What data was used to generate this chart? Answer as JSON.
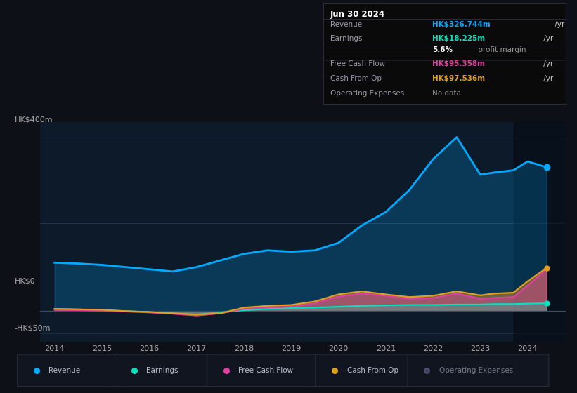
{
  "background_color": "#0d1117",
  "chart_bg_color": "#0d1a2a",
  "years": [
    2014,
    2014.5,
    2015,
    2015.5,
    2016,
    2016.5,
    2017,
    2017.5,
    2018,
    2018.5,
    2019,
    2019.5,
    2020,
    2020.5,
    2021,
    2021.5,
    2022,
    2022.5,
    2023,
    2023.3,
    2023.7,
    2024,
    2024.4
  ],
  "revenue": [
    110,
    108,
    105,
    100,
    95,
    90,
    100,
    115,
    130,
    138,
    135,
    138,
    155,
    195,
    225,
    275,
    345,
    395,
    310,
    315,
    320,
    340,
    327
  ],
  "earnings": [
    5,
    4,
    2,
    0,
    -2,
    -5,
    -8,
    -3,
    2,
    5,
    7,
    8,
    10,
    12,
    13,
    14,
    14,
    15,
    15,
    16,
    16,
    17,
    18
  ],
  "free_cash_flow": [
    3,
    2,
    1,
    -1,
    -3,
    -6,
    -10,
    -5,
    5,
    8,
    10,
    18,
    33,
    40,
    35,
    28,
    30,
    40,
    28,
    30,
    32,
    58,
    95
  ],
  "cash_from_op": [
    5,
    4,
    3,
    0,
    -2,
    -5,
    -8,
    -5,
    8,
    12,
    14,
    22,
    38,
    45,
    38,
    32,
    35,
    45,
    36,
    40,
    42,
    68,
    98
  ],
  "revenue_color": "#00aaff",
  "earnings_color": "#00e5c0",
  "fcf_color": "#e040a0",
  "cfo_color": "#e0a020",
  "opex_color": "#8888bb",
  "legend_items": [
    {
      "label": "Revenue",
      "color": "#00aaff",
      "dim": false
    },
    {
      "label": "Earnings",
      "color": "#00e5c0",
      "dim": false
    },
    {
      "label": "Free Cash Flow",
      "color": "#e040a0",
      "dim": false
    },
    {
      "label": "Cash From Op",
      "color": "#e0a020",
      "dim": false
    },
    {
      "label": "Operating Expenses",
      "color": "#8888bb",
      "dim": true
    }
  ],
  "info_box": {
    "title": "Jun 30 2024",
    "rows": [
      {
        "label": "Revenue",
        "value": "HK$326.744m",
        "suffix": " /yr",
        "value_color": "#00aaff",
        "bold_val": true
      },
      {
        "label": "Earnings",
        "value": "HK$18.225m",
        "suffix": " /yr",
        "value_color": "#00e5c0",
        "bold_val": true
      },
      {
        "label": "",
        "value": "5.6%",
        "suffix": " profit margin",
        "value_color": "#ffffff",
        "bold_val": true
      },
      {
        "label": "Free Cash Flow",
        "value": "HK$95.358m",
        "suffix": " /yr",
        "value_color": "#e040a0",
        "bold_val": true
      },
      {
        "label": "Cash From Op",
        "value": "HK$97.536m",
        "suffix": " /yr",
        "value_color": "#e0a020",
        "bold_val": true
      },
      {
        "label": "Operating Expenses",
        "value": "No data",
        "suffix": "",
        "value_color": "#888888",
        "bold_val": false
      }
    ]
  },
  "xlim": [
    2013.7,
    2024.8
  ],
  "ylim": [
    -70,
    430
  ],
  "xticks": [
    2014,
    2015,
    2016,
    2017,
    2018,
    2019,
    2020,
    2021,
    2022,
    2023,
    2024
  ]
}
